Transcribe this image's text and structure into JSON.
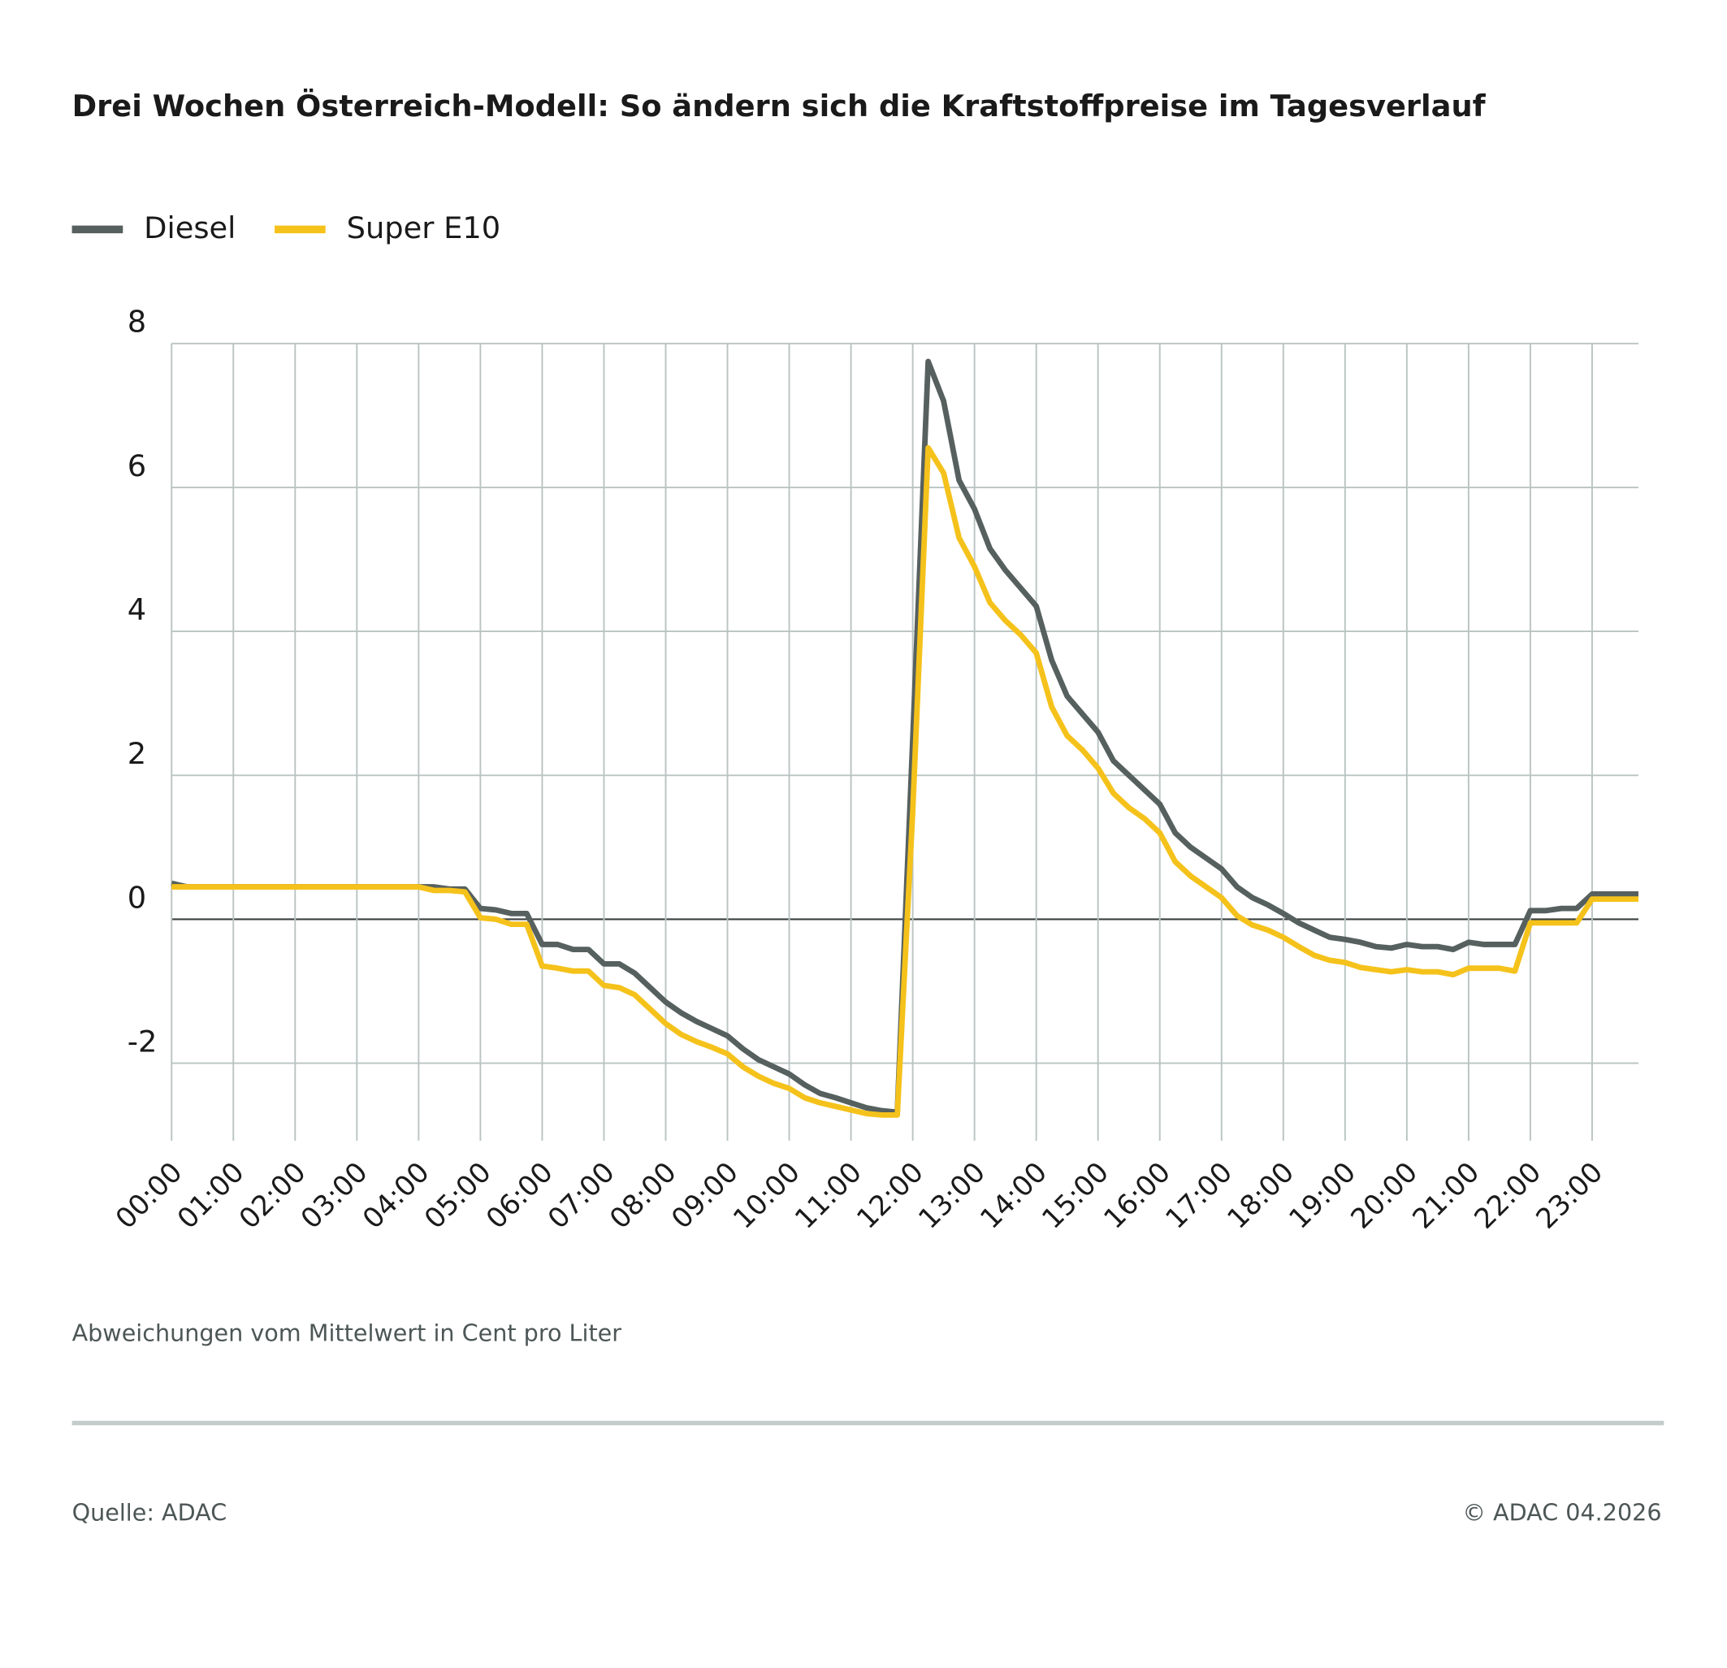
{
  "chart_data": {
    "type": "line",
    "title": "Drei Wochen Österreich-Modell: So ändern sich die Kraftstoffpreise im Tagesverlauf",
    "y_label": "Abweichungen vom Mittelwert in Cent pro Liter",
    "source": "Quelle: ADAC",
    "copyright": "© ADAC 04.2026",
    "x": [
      0,
      0.25,
      0.5,
      0.75,
      1,
      1.25,
      1.5,
      1.75,
      2,
      2.25,
      2.5,
      2.75,
      3,
      3.25,
      3.5,
      3.75,
      4,
      4.25,
      4.5,
      4.75,
      5,
      5.25,
      5.5,
      5.75,
      6,
      6.25,
      6.5,
      6.75,
      7,
      7.25,
      7.5,
      7.75,
      8,
      8.25,
      8.5,
      8.75,
      9,
      9.25,
      9.5,
      9.75,
      10,
      10.25,
      10.5,
      10.75,
      11,
      11.25,
      11.5,
      11.75,
      12,
      12.25,
      12.5,
      12.75,
      13,
      13.25,
      13.5,
      13.75,
      14,
      14.25,
      14.5,
      14.75,
      15,
      15.25,
      15.5,
      15.75,
      16,
      16.25,
      16.5,
      16.75,
      17,
      17.25,
      17.5,
      17.75,
      18,
      18.25,
      18.5,
      18.75,
      19,
      19.25,
      19.5,
      19.75,
      20,
      20.25,
      20.5,
      20.75,
      21,
      21.25,
      21.5,
      21.75,
      22,
      22.25,
      22.5,
      22.75,
      23,
      23.25,
      23.5,
      23.75
    ],
    "series": [
      {
        "name": "Diesel",
        "color": "#56605f",
        "values": [
          0.5,
          0.45,
          0.45,
          0.45,
          0.45,
          0.45,
          0.45,
          0.45,
          0.45,
          0.45,
          0.45,
          0.45,
          0.45,
          0.45,
          0.45,
          0.45,
          0.45,
          0.45,
          0.42,
          0.42,
          0.15,
          0.13,
          0.08,
          0.08,
          -0.35,
          -0.35,
          -0.42,
          -0.42,
          -0.62,
          -0.62,
          -0.75,
          -0.95,
          -1.15,
          -1.3,
          -1.42,
          -1.52,
          -1.62,
          -1.8,
          -1.95,
          -2.05,
          -2.15,
          -2.3,
          -2.42,
          -2.48,
          -2.55,
          -2.62,
          -2.66,
          -2.68,
          2.5,
          7.75,
          7.2,
          6.1,
          5.7,
          5.15,
          4.85,
          4.6,
          4.35,
          3.6,
          3.1,
          2.85,
          2.6,
          2.2,
          2.0,
          1.8,
          1.6,
          1.2,
          1.0,
          0.85,
          0.7,
          0.45,
          0.3,
          0.2,
          0.08,
          -0.05,
          -0.15,
          -0.25,
          -0.28,
          -0.32,
          -0.38,
          -0.4,
          -0.35,
          -0.38,
          -0.38,
          -0.42,
          -0.32,
          -0.35,
          -0.35,
          -0.35,
          0.12,
          0.12,
          0.15,
          0.15,
          0.35,
          0.35,
          0.35,
          0.35
        ]
      },
      {
        "name": "Super E10",
        "color": "#f5c21b",
        "values": [
          0.45,
          0.45,
          0.45,
          0.45,
          0.45,
          0.45,
          0.45,
          0.45,
          0.45,
          0.45,
          0.45,
          0.45,
          0.45,
          0.45,
          0.45,
          0.45,
          0.45,
          0.4,
          0.4,
          0.38,
          0.02,
          0.0,
          -0.07,
          -0.07,
          -0.65,
          -0.68,
          -0.72,
          -0.72,
          -0.92,
          -0.95,
          -1.05,
          -1.25,
          -1.45,
          -1.6,
          -1.7,
          -1.78,
          -1.87,
          -2.05,
          -2.18,
          -2.28,
          -2.35,
          -2.48,
          -2.55,
          -2.6,
          -2.65,
          -2.7,
          -2.72,
          -2.72,
          1.5,
          6.55,
          6.2,
          5.3,
          4.9,
          4.4,
          4.15,
          3.95,
          3.7,
          2.95,
          2.55,
          2.35,
          2.1,
          1.75,
          1.55,
          1.4,
          1.2,
          0.8,
          0.6,
          0.45,
          0.3,
          0.05,
          -0.08,
          -0.15,
          -0.25,
          -0.38,
          -0.5,
          -0.57,
          -0.6,
          -0.67,
          -0.7,
          -0.73,
          -0.7,
          -0.73,
          -0.73,
          -0.77,
          -0.68,
          -0.68,
          -0.68,
          -0.72,
          -0.05,
          -0.05,
          -0.05,
          -0.05,
          0.28,
          0.28,
          0.28,
          0.28
        ]
      }
    ],
    "xlim": [
      0,
      23.75
    ],
    "xticks": [
      {
        "value": 0,
        "label": "00:00"
      },
      {
        "value": 1,
        "label": "01:00"
      },
      {
        "value": 2,
        "label": "02:00"
      },
      {
        "value": 3,
        "label": "03:00"
      },
      {
        "value": 4,
        "label": "04:00"
      },
      {
        "value": 5,
        "label": "05:00"
      },
      {
        "value": 6,
        "label": "06:00"
      },
      {
        "value": 7,
        "label": "07:00"
      },
      {
        "value": 8,
        "label": "08:00"
      },
      {
        "value": 9,
        "label": "09:00"
      },
      {
        "value": 10,
        "label": "10:00"
      },
      {
        "value": 11,
        "label": "11:00"
      },
      {
        "value": 12,
        "label": "12:00"
      },
      {
        "value": 13,
        "label": "13:00"
      },
      {
        "value": 14,
        "label": "14:00"
      },
      {
        "value": 15,
        "label": "15:00"
      },
      {
        "value": 16,
        "label": "16:00"
      },
      {
        "value": 17,
        "label": "17:00"
      },
      {
        "value": 18,
        "label": "18:00"
      },
      {
        "value": 19,
        "label": "19:00"
      },
      {
        "value": 20,
        "label": "20:00"
      },
      {
        "value": 21,
        "label": "21:00"
      },
      {
        "value": 22,
        "label": "22:00"
      },
      {
        "value": 23,
        "label": "23:00"
      }
    ],
    "ylim": [
      -3,
      8
    ],
    "yticks": [
      -2,
      0,
      2,
      4,
      6,
      8
    ],
    "grid": true,
    "legend": "top-left"
  }
}
